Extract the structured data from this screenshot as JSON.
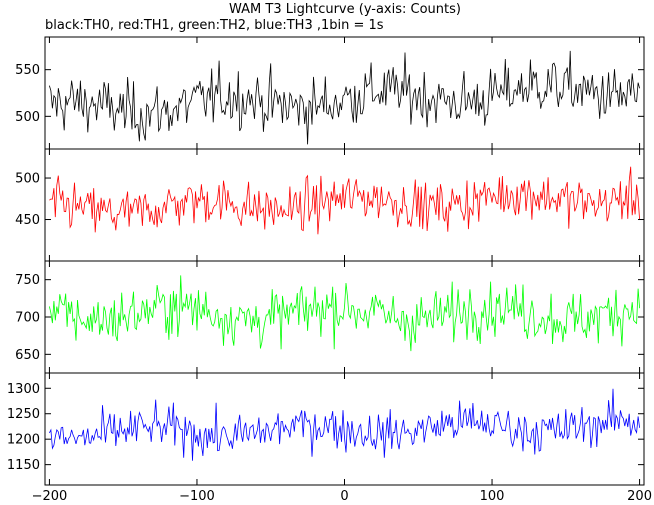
{
  "chart_data": {
    "type": "line",
    "title": "WAM T3 Lightcurve (y-axis: Counts)",
    "subtitle": "black:TH0, red:TH1, green:TH2, blue:TH3 ,1bin = 1s",
    "xlabel": "",
    "ylabel": "",
    "x_range": [
      -203,
      203
    ],
    "x_ticks": [
      -200,
      -100,
      0,
      100,
      200
    ],
    "x_tick_labels": [
      "−200",
      "−100",
      "0",
      "100",
      "200"
    ],
    "x_step": 1,
    "grid": false,
    "panels": [
      {
        "name": "TH0",
        "color": "#000000",
        "ylim": [
          465,
          585
        ],
        "y_ticks": [
          500,
          550
        ],
        "y_tick_labels": [
          "500",
          "550"
        ],
        "values_summary": {
          "mean_start": 507,
          "mean_end": 530,
          "spread": 30
        }
      },
      {
        "name": "TH1",
        "color": "#ff0000",
        "ylim": [
          400,
          535
        ],
        "y_ticks": [
          450,
          500
        ],
        "y_tick_labels": [
          "450",
          "500"
        ],
        "values_summary": {
          "mean_start": 462,
          "mean_end": 478,
          "spread": 28
        }
      },
      {
        "name": "TH2",
        "color": "#00ff00",
        "ylim": [
          625,
          775
        ],
        "y_ticks": [
          650,
          700,
          750
        ],
        "y_tick_labels": [
          "650",
          "700",
          "750"
        ],
        "values_summary": {
          "mean_start": 705,
          "mean_end": 705,
          "spread": 35
        }
      },
      {
        "name": "TH3",
        "color": "#0000ff",
        "ylim": [
          1110,
          1330
        ],
        "y_ticks": [
          1150,
          1200,
          1250,
          1300
        ],
        "y_tick_labels": [
          "1150",
          "1200",
          "1250",
          "1300"
        ],
        "values_summary": {
          "mean_start": 1210,
          "mean_end": 1228,
          "spread": 40
        }
      }
    ]
  }
}
